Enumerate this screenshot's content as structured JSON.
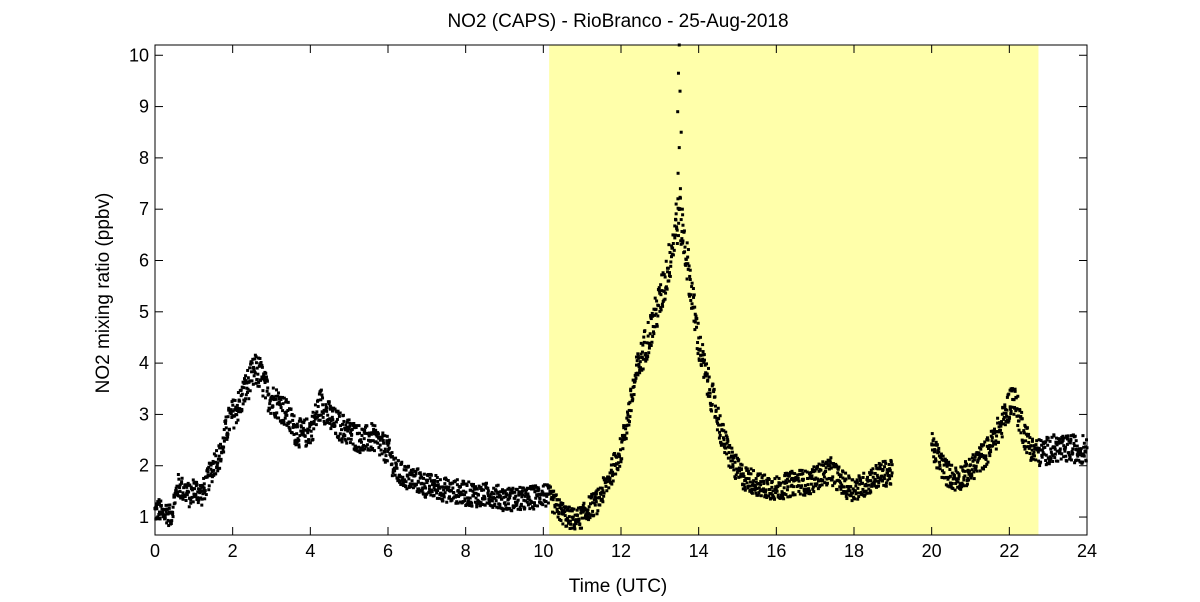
{
  "chart_data": {
    "type": "scatter",
    "title": "NO2 (CAPS) - RioBranco - 25-Aug-2018",
    "xlabel": "Time (UTC)",
    "ylabel": "NO2 mixing ratio (ppbv)",
    "xlim": [
      0,
      24
    ],
    "ylim": [
      0.65,
      10.2
    ],
    "xticks": [
      0,
      2,
      4,
      6,
      8,
      10,
      12,
      14,
      16,
      18,
      20,
      22,
      24
    ],
    "yticks": [
      1,
      2,
      3,
      4,
      5,
      6,
      7,
      8,
      9,
      10
    ],
    "grid": false,
    "highlight_band": {
      "x_start": 10.15,
      "x_end": 22.75,
      "color": "#ffffaa"
    },
    "marker_color": "#000000",
    "series": [
      {
        "points": [
          [
            0.0,
            1.1
          ],
          [
            0.1,
            1.15
          ],
          [
            0.2,
            1.05
          ],
          [
            0.3,
            1.1
          ],
          [
            0.4,
            1.0
          ],
          [
            0.5,
            1.35
          ],
          [
            0.6,
            1.6
          ],
          [
            0.7,
            1.55
          ],
          [
            0.8,
            1.5
          ],
          [
            0.9,
            1.4
          ],
          [
            1.0,
            1.55
          ],
          [
            1.1,
            1.5
          ],
          [
            1.2,
            1.45
          ],
          [
            1.3,
            1.6
          ],
          [
            1.4,
            1.8
          ],
          [
            1.5,
            2.0
          ],
          [
            1.6,
            2.15
          ],
          [
            1.7,
            2.2
          ],
          [
            1.8,
            2.6
          ],
          [
            1.9,
            2.85
          ],
          [
            2.0,
            3.0
          ],
          [
            2.1,
            3.1
          ],
          [
            2.2,
            3.25
          ],
          [
            2.3,
            3.45
          ],
          [
            2.4,
            3.6
          ],
          [
            2.5,
            3.75
          ],
          [
            2.6,
            3.85
          ],
          [
            2.7,
            3.8
          ],
          [
            2.8,
            3.6
          ],
          [
            2.9,
            3.4
          ],
          [
            3.0,
            3.3
          ],
          [
            3.2,
            3.2
          ],
          [
            3.4,
            3.0
          ],
          [
            3.6,
            2.7
          ],
          [
            3.8,
            2.6
          ],
          [
            4.0,
            2.7
          ],
          [
            4.1,
            2.85
          ],
          [
            4.2,
            3.1
          ],
          [
            4.3,
            3.25
          ],
          [
            4.4,
            3.05
          ],
          [
            4.6,
            2.85
          ],
          [
            4.8,
            2.75
          ],
          [
            5.0,
            2.65
          ],
          [
            5.2,
            2.55
          ],
          [
            5.4,
            2.5
          ],
          [
            5.6,
            2.55
          ],
          [
            5.8,
            2.4
          ],
          [
            6.0,
            2.3
          ],
          [
            6.2,
            1.9
          ],
          [
            6.4,
            1.8
          ],
          [
            6.6,
            1.75
          ],
          [
            6.8,
            1.7
          ],
          [
            7.0,
            1.6
          ],
          [
            7.2,
            1.6
          ],
          [
            7.4,
            1.55
          ],
          [
            7.6,
            1.5
          ],
          [
            7.8,
            1.5
          ],
          [
            8.0,
            1.45
          ],
          [
            8.2,
            1.45
          ],
          [
            8.4,
            1.4
          ],
          [
            8.6,
            1.45
          ],
          [
            8.8,
            1.4
          ],
          [
            9.0,
            1.35
          ],
          [
            9.2,
            1.35
          ],
          [
            9.4,
            1.35
          ],
          [
            9.6,
            1.35
          ],
          [
            9.8,
            1.4
          ],
          [
            10.0,
            1.45
          ],
          [
            10.2,
            1.35
          ],
          [
            10.4,
            1.15
          ],
          [
            10.6,
            1.0
          ],
          [
            10.8,
            0.95
          ],
          [
            11.0,
            1.0
          ],
          [
            11.2,
            1.2
          ],
          [
            11.4,
            1.3
          ],
          [
            11.6,
            1.6
          ],
          [
            11.8,
            1.95
          ],
          [
            12.0,
            2.3
          ],
          [
            12.2,
            3.0
          ],
          [
            12.4,
            3.8
          ],
          [
            12.6,
            4.3
          ],
          [
            12.8,
            4.7
          ],
          [
            13.0,
            5.2
          ],
          [
            13.2,
            5.8
          ],
          [
            13.3,
            6.2
          ],
          [
            13.4,
            6.6
          ],
          [
            13.5,
            6.9
          ],
          [
            13.6,
            6.5
          ],
          [
            13.7,
            6.0
          ],
          [
            13.8,
            5.5
          ],
          [
            13.9,
            4.9
          ],
          [
            14.0,
            4.4
          ],
          [
            14.2,
            3.7
          ],
          [
            14.4,
            3.2
          ],
          [
            14.6,
            2.6
          ],
          [
            14.8,
            2.2
          ],
          [
            15.0,
            1.9
          ],
          [
            15.2,
            1.75
          ],
          [
            15.4,
            1.7
          ],
          [
            15.6,
            1.6
          ],
          [
            15.8,
            1.6
          ],
          [
            16.0,
            1.55
          ],
          [
            16.2,
            1.6
          ],
          [
            16.4,
            1.65
          ],
          [
            16.6,
            1.7
          ],
          [
            16.8,
            1.65
          ],
          [
            17.0,
            1.75
          ],
          [
            17.2,
            1.85
          ],
          [
            17.4,
            1.9
          ],
          [
            17.6,
            1.75
          ],
          [
            17.8,
            1.6
          ],
          [
            18.0,
            1.55
          ],
          [
            18.2,
            1.6
          ],
          [
            18.4,
            1.7
          ],
          [
            18.6,
            1.8
          ],
          [
            18.8,
            1.85
          ],
          [
            19.0,
            1.85
          ],
          [
            20.0,
            2.4
          ],
          [
            20.2,
            2.1
          ],
          [
            20.4,
            1.85
          ],
          [
            20.6,
            1.75
          ],
          [
            20.8,
            1.8
          ],
          [
            21.0,
            1.9
          ],
          [
            21.2,
            2.1
          ],
          [
            21.4,
            2.25
          ],
          [
            21.6,
            2.5
          ],
          [
            21.8,
            2.8
          ],
          [
            22.0,
            3.2
          ],
          [
            22.1,
            3.35
          ],
          [
            22.2,
            3.1
          ],
          [
            22.4,
            2.6
          ],
          [
            22.6,
            2.3
          ],
          [
            22.8,
            2.25
          ],
          [
            23.0,
            2.3
          ],
          [
            23.2,
            2.35
          ],
          [
            23.4,
            2.3
          ],
          [
            23.6,
            2.35
          ],
          [
            23.8,
            2.3
          ],
          [
            24.0,
            2.35
          ]
        ],
        "spikes": [
          [
            13.5,
            10.2
          ],
          [
            13.48,
            9.65
          ],
          [
            13.52,
            9.3
          ],
          [
            13.46,
            8.9
          ],
          [
            13.55,
            8.5
          ],
          [
            13.5,
            8.2
          ],
          [
            13.47,
            7.7
          ],
          [
            13.53,
            7.4
          ],
          [
            13.42,
            7.1
          ],
          [
            13.58,
            7.0
          ]
        ]
      }
    ]
  }
}
